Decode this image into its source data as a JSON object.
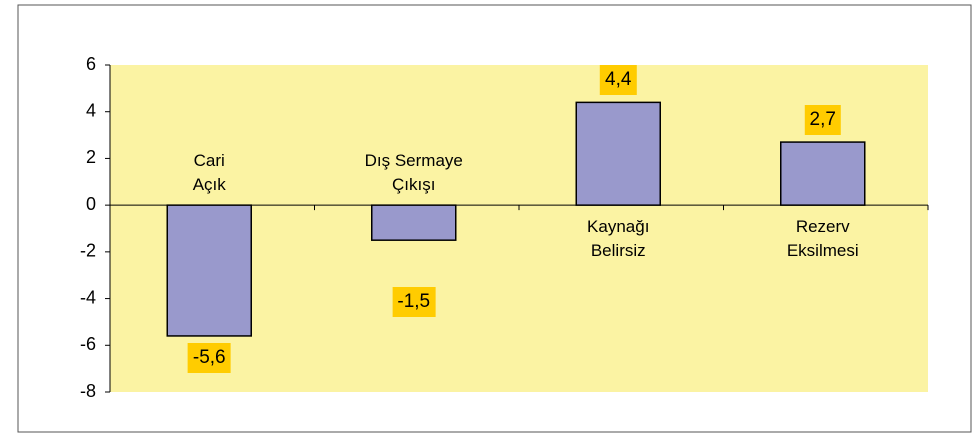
{
  "chart_data": {
    "type": "bar",
    "categories": [
      "Cari\nAçık",
      "Dış Sermaye\nÇıkışı",
      "Kaynağı\nBelirsiz",
      "Rezerv\nEksilmesi"
    ],
    "values": [
      -5.6,
      -1.5,
      4.4,
      2.7
    ],
    "value_labels": [
      "-5,6",
      "-1,5",
      "4,4",
      "2,7"
    ],
    "color": "#9999cc",
    "ylim": [
      -8,
      6
    ],
    "yticks": [
      6,
      4,
      2,
      0,
      -2,
      -4,
      -6,
      -8
    ]
  }
}
